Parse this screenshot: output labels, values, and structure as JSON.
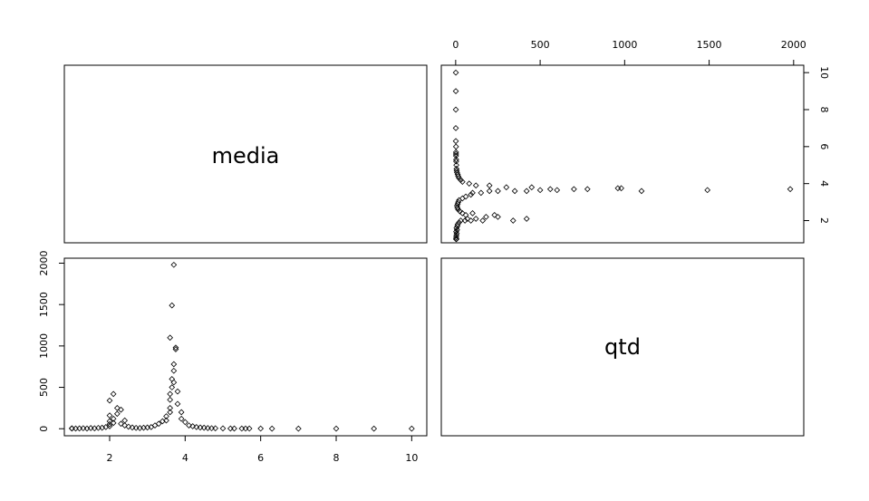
{
  "chart_data": {
    "type": "scatter",
    "variables": [
      "media",
      "qtd"
    ],
    "media_axis": {
      "ticks": [
        2,
        4,
        6,
        8,
        10
      ],
      "lim": [
        0.8,
        10.4
      ]
    },
    "qtd_axis": {
      "ticks": [
        0,
        500,
        1000,
        1500,
        2000
      ],
      "lim": [
        -85,
        2060
      ]
    },
    "grid": false,
    "legend": "none",
    "point_color": "#000000",
    "points": [
      {
        "media": 1.0,
        "qtd": 2
      },
      {
        "media": 1.0,
        "qtd": 5
      },
      {
        "media": 1.1,
        "qtd": 3
      },
      {
        "media": 1.2,
        "qtd": 4
      },
      {
        "media": 1.3,
        "qtd": 6
      },
      {
        "media": 1.4,
        "qtd": 3
      },
      {
        "media": 1.5,
        "qtd": 8
      },
      {
        "media": 1.6,
        "qtd": 5
      },
      {
        "media": 1.7,
        "qtd": 10
      },
      {
        "media": 1.8,
        "qtd": 12
      },
      {
        "media": 1.9,
        "qtd": 20
      },
      {
        "media": 2.0,
        "qtd": 30
      },
      {
        "media": 2.0,
        "qtd": 55
      },
      {
        "media": 2.0,
        "qtd": 90
      },
      {
        "media": 2.0,
        "qtd": 160
      },
      {
        "media": 2.0,
        "qtd": 340
      },
      {
        "media": 2.1,
        "qtd": 420
      },
      {
        "media": 2.1,
        "qtd": 120
      },
      {
        "media": 2.1,
        "qtd": 70
      },
      {
        "media": 2.2,
        "qtd": 250
      },
      {
        "media": 2.2,
        "qtd": 180
      },
      {
        "media": 2.3,
        "qtd": 230
      },
      {
        "media": 2.3,
        "qtd": 60
      },
      {
        "media": 2.4,
        "qtd": 100
      },
      {
        "media": 2.4,
        "qtd": 40
      },
      {
        "media": 2.5,
        "qtd": 25
      },
      {
        "media": 2.6,
        "qtd": 15
      },
      {
        "media": 2.7,
        "qtd": 10
      },
      {
        "media": 2.8,
        "qtd": 8
      },
      {
        "media": 2.9,
        "qtd": 12
      },
      {
        "media": 3.0,
        "qtd": 15
      },
      {
        "media": 3.1,
        "qtd": 20
      },
      {
        "media": 3.2,
        "qtd": 40
      },
      {
        "media": 3.3,
        "qtd": 60
      },
      {
        "media": 3.4,
        "qtd": 90
      },
      {
        "media": 3.5,
        "qtd": 150
      },
      {
        "media": 3.5,
        "qtd": 100
      },
      {
        "media": 3.6,
        "qtd": 350
      },
      {
        "media": 3.6,
        "qtd": 250
      },
      {
        "media": 3.6,
        "qtd": 200
      },
      {
        "media": 3.6,
        "qtd": 420
      },
      {
        "media": 3.65,
        "qtd": 500
      },
      {
        "media": 3.65,
        "qtd": 600
      },
      {
        "media": 3.7,
        "qtd": 700
      },
      {
        "media": 3.7,
        "qtd": 780
      },
      {
        "media": 3.6,
        "qtd": 1100
      },
      {
        "media": 3.65,
        "qtd": 1490
      },
      {
        "media": 3.7,
        "qtd": 1980
      },
      {
        "media": 3.75,
        "qtd": 980
      },
      {
        "media": 3.75,
        "qtd": 960
      },
      {
        "media": 3.7,
        "qtd": 560
      },
      {
        "media": 3.8,
        "qtd": 450
      },
      {
        "media": 3.8,
        "qtd": 300
      },
      {
        "media": 3.9,
        "qtd": 200
      },
      {
        "media": 3.9,
        "qtd": 120
      },
      {
        "media": 4.0,
        "qtd": 80
      },
      {
        "media": 4.1,
        "qtd": 40
      },
      {
        "media": 4.2,
        "qtd": 30
      },
      {
        "media": 4.3,
        "qtd": 20
      },
      {
        "media": 4.4,
        "qtd": 15
      },
      {
        "media": 4.5,
        "qtd": 12
      },
      {
        "media": 4.6,
        "qtd": 8
      },
      {
        "media": 4.7,
        "qtd": 6
      },
      {
        "media": 4.8,
        "qtd": 5
      },
      {
        "media": 5.0,
        "qtd": 4
      },
      {
        "media": 5.2,
        "qtd": 3
      },
      {
        "media": 5.3,
        "qtd": 3
      },
      {
        "media": 5.5,
        "qtd": 2
      },
      {
        "media": 5.6,
        "qtd": 2
      },
      {
        "media": 5.7,
        "qtd": 2
      },
      {
        "media": 6.0,
        "qtd": 2
      },
      {
        "media": 6.3,
        "qtd": 1
      },
      {
        "media": 7.0,
        "qtd": 1
      },
      {
        "media": 8.0,
        "qtd": 1
      },
      {
        "media": 9.0,
        "qtd": 1
      },
      {
        "media": 10.0,
        "qtd": 1
      }
    ]
  }
}
